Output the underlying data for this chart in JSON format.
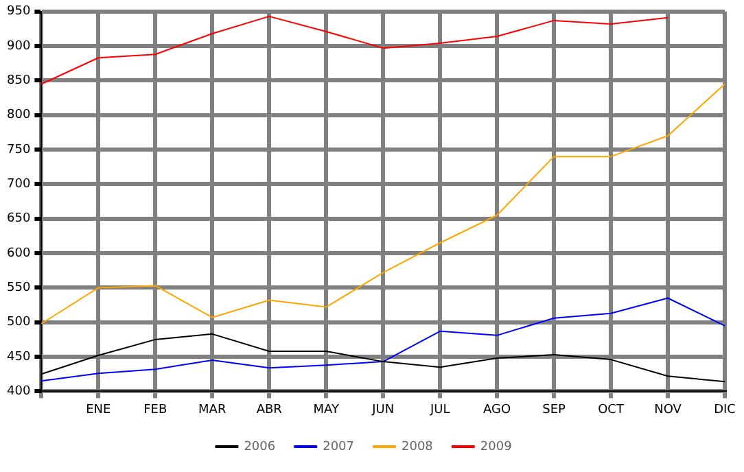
{
  "chart_data": {
    "type": "line",
    "categories": [
      null,
      "ENE",
      "FEB",
      "MAR",
      "ABR",
      "MAY",
      "JUN",
      "JUL",
      "AGO",
      "SEP",
      "OCT",
      "NOV",
      "DIC"
    ],
    "series": [
      {
        "name": "2006",
        "color": "#000000",
        "values": [
          425,
          452,
          475,
          483,
          458,
          458,
          443,
          435,
          448,
          453,
          446,
          422,
          414
        ]
      },
      {
        "name": "2007",
        "color": "#0000ff",
        "values": [
          415,
          426,
          432,
          445,
          434,
          438,
          443,
          487,
          481,
          506,
          513,
          535,
          495
        ]
      },
      {
        "name": "2008",
        "color": "#ffa500",
        "values": [
          498,
          550,
          553,
          507,
          532,
          522,
          572,
          615,
          655,
          740,
          740,
          770,
          845
        ]
      },
      {
        "name": "2009",
        "color": "#ff0000",
        "values": [
          845,
          883,
          888,
          918,
          943,
          921,
          897,
          904,
          914,
          937,
          932,
          941,
          null
        ]
      }
    ],
    "ylim": [
      400,
      950
    ],
    "yticks": [
      400,
      450,
      500,
      550,
      600,
      650,
      700,
      750,
      800,
      850,
      900,
      950
    ],
    "grid": true,
    "legend": "bottom",
    "marker": "none",
    "line_style": "solid"
  }
}
